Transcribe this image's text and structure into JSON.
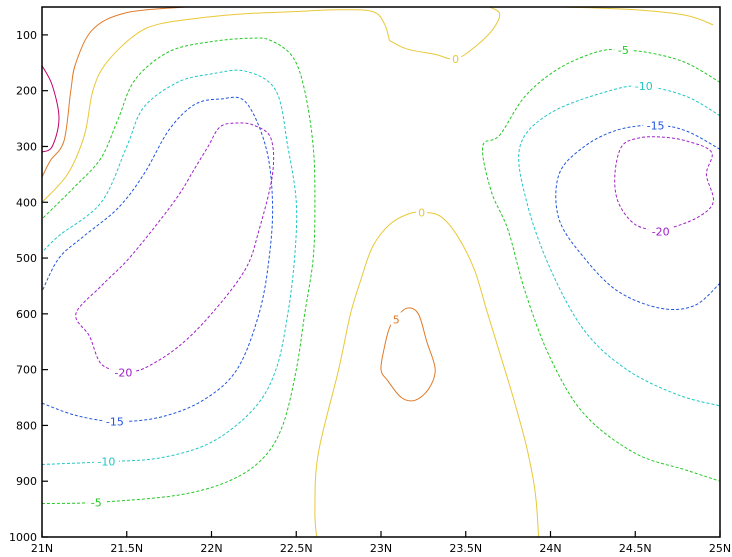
{
  "chart_data": {
    "type": "contour",
    "title": "",
    "xlabel": "",
    "ylabel": "",
    "x_ticks": [
      {
        "value": 21.0,
        "label": "21N"
      },
      {
        "value": 21.5,
        "label": "21.5N"
      },
      {
        "value": 22.0,
        "label": "22N"
      },
      {
        "value": 22.5,
        "label": "22.5N"
      },
      {
        "value": 23.0,
        "label": "23N"
      },
      {
        "value": 23.5,
        "label": "23.5N"
      },
      {
        "value": 24.0,
        "label": "24N"
      },
      {
        "value": 24.5,
        "label": "24.5N"
      },
      {
        "value": 25.0,
        "label": "25N"
      }
    ],
    "y_ticks": [
      {
        "value": 100,
        "label": "100"
      },
      {
        "value": 200,
        "label": "200"
      },
      {
        "value": 300,
        "label": "300"
      },
      {
        "value": 400,
        "label": "400"
      },
      {
        "value": 500,
        "label": "500"
      },
      {
        "value": 600,
        "label": "600"
      },
      {
        "value": 700,
        "label": "700"
      },
      {
        "value": 800,
        "label": "800"
      },
      {
        "value": 900,
        "label": "900"
      },
      {
        "value": 1000,
        "label": "1000"
      }
    ],
    "xlim": [
      21,
      25
    ],
    "ylim": [
      50,
      1000
    ],
    "y_inverted": true,
    "levels": [
      {
        "value": 10,
        "label": "",
        "color": "#c0006a",
        "dashed": false
      },
      {
        "value": 5,
        "label": "5",
        "color": "#e07a28",
        "dashed": false
      },
      {
        "value": 0,
        "label": "0",
        "color": "#e8c838",
        "dashed": false
      },
      {
        "value": -5,
        "label": "-5",
        "color": "#22c922",
        "dashed": true
      },
      {
        "value": -10,
        "label": "-10",
        "color": "#22c6c6",
        "dashed": true
      },
      {
        "value": -15,
        "label": "-15",
        "color": "#2255dd",
        "dashed": true
      },
      {
        "value": -20,
        "label": "-20",
        "color": "#a020c8",
        "dashed": true
      }
    ],
    "contours": [
      {
        "level": 10,
        "points": [
          [
            21.0,
            155
          ],
          [
            21.06,
            190
          ],
          [
            21.1,
            250
          ],
          [
            21.06,
            300
          ],
          [
            21.0,
            310
          ]
        ]
      },
      {
        "level": 5,
        "points": [
          [
            21.0,
            355
          ],
          [
            21.05,
            325
          ],
          [
            21.13,
            290
          ],
          [
            21.17,
            200
          ],
          [
            21.2,
            150
          ],
          [
            21.3,
            90
          ],
          [
            21.5,
            60
          ],
          [
            21.85,
            50
          ]
        ]
      },
      {
        "level": 5,
        "label_at": [
          23.09,
          610
        ],
        "points": [
          [
            23.08,
            610
          ],
          [
            23.15,
            590
          ],
          [
            23.22,
            600
          ],
          [
            23.27,
            650
          ],
          [
            23.32,
            700
          ],
          [
            23.28,
            735
          ],
          [
            23.2,
            755
          ],
          [
            23.12,
            750
          ],
          [
            23.04,
            720
          ],
          [
            23.0,
            700
          ],
          [
            23.02,
            660
          ],
          [
            23.05,
            625
          ],
          [
            23.08,
            610
          ]
        ]
      },
      {
        "level": 0,
        "points": [
          [
            21.0,
            400
          ],
          [
            21.15,
            350
          ],
          [
            21.25,
            280
          ],
          [
            21.3,
            200
          ],
          [
            21.38,
            150
          ],
          [
            21.55,
            100
          ],
          [
            21.7,
            80
          ],
          [
            21.98,
            68
          ],
          [
            22.2,
            62
          ],
          [
            22.5,
            58
          ],
          [
            22.75,
            55
          ],
          [
            22.95,
            58
          ],
          [
            23.02,
            80
          ],
          [
            23.05,
            110
          ]
        ]
      },
      {
        "level": 0,
        "label_at": [
          23.44,
          143
        ],
        "points": [
          [
            23.05,
            110
          ],
          [
            23.15,
            125
          ],
          [
            23.32,
            135
          ],
          [
            23.44,
            143
          ],
          [
            23.56,
            120
          ],
          [
            23.66,
            90
          ],
          [
            23.7,
            62
          ],
          [
            23.64,
            50
          ]
        ]
      },
      {
        "level": 0,
        "points": [
          [
            24.08,
            50
          ],
          [
            24.5,
            55
          ],
          [
            24.8,
            65
          ],
          [
            24.96,
            82
          ]
        ]
      },
      {
        "level": 0,
        "label_at": [
          23.24,
          418
        ],
        "points": [
          [
            22.62,
            1000
          ],
          [
            22.61,
            950
          ],
          [
            22.63,
            850
          ],
          [
            22.75,
            700
          ],
          [
            22.82,
            600
          ],
          [
            22.88,
            540
          ],
          [
            22.95,
            480
          ],
          [
            23.05,
            440
          ],
          [
            23.16,
            421
          ],
          [
            23.24,
            418
          ],
          [
            23.35,
            425
          ],
          [
            23.45,
            460
          ],
          [
            23.55,
            520
          ],
          [
            23.62,
            590
          ],
          [
            23.68,
            650
          ],
          [
            23.78,
            750
          ],
          [
            23.86,
            840
          ],
          [
            23.91,
            920
          ],
          [
            23.93,
            1000
          ]
        ]
      },
      {
        "level": -5,
        "label_at": [
          21.32,
          938
        ],
        "points": [
          [
            21.0,
            940
          ],
          [
            21.32,
            938
          ],
          [
            21.8,
            925
          ],
          [
            22.1,
            900
          ],
          [
            22.3,
            860
          ],
          [
            22.42,
            800
          ],
          [
            22.5,
            700
          ],
          [
            22.55,
            600
          ],
          [
            22.6,
            500
          ],
          [
            22.61,
            400
          ],
          [
            22.6,
            300
          ],
          [
            22.55,
            200
          ],
          [
            22.48,
            140
          ],
          [
            22.35,
            110
          ],
          [
            22.23,
            106
          ],
          [
            22.0,
            112
          ],
          [
            21.75,
            130
          ],
          [
            21.55,
            180
          ],
          [
            21.45,
            250
          ],
          [
            21.35,
            320
          ],
          [
            21.2,
            370
          ],
          [
            21.0,
            430
          ]
        ]
      },
      {
        "level": -5,
        "label_at": [
          24.43,
          127
        ],
        "points": [
          [
            25.0,
            185
          ],
          [
            24.8,
            150
          ],
          [
            24.6,
            133
          ],
          [
            24.43,
            127
          ],
          [
            24.28,
            130
          ],
          [
            24.05,
            160
          ],
          [
            23.85,
            210
          ],
          [
            23.7,
            280
          ],
          [
            23.6,
            300
          ],
          [
            23.65,
            380
          ],
          [
            23.75,
            450
          ],
          [
            23.85,
            560
          ],
          [
            24.0,
            680
          ],
          [
            24.2,
            780
          ],
          [
            24.5,
            850
          ],
          [
            24.8,
            880
          ],
          [
            25.0,
            900
          ]
        ]
      },
      {
        "level": -10,
        "label_at": [
          21.38,
          865
        ],
        "points": [
          [
            21.0,
            870
          ],
          [
            21.38,
            865
          ],
          [
            21.7,
            858
          ],
          [
            22.0,
            830
          ],
          [
            22.25,
            770
          ],
          [
            22.38,
            700
          ],
          [
            22.45,
            600
          ],
          [
            22.49,
            500
          ],
          [
            22.5,
            400
          ],
          [
            22.45,
            300
          ],
          [
            22.38,
            200
          ],
          [
            22.2,
            165
          ],
          [
            22.0,
            170
          ],
          [
            21.8,
            185
          ],
          [
            21.6,
            230
          ],
          [
            21.5,
            300
          ],
          [
            21.35,
            400
          ],
          [
            21.1,
            460
          ],
          [
            21.0,
            490
          ]
        ]
      },
      {
        "level": -10,
        "label_at": [
          24.55,
          192
        ],
        "points": [
          [
            25.0,
            245
          ],
          [
            24.8,
            210
          ],
          [
            24.55,
            192
          ],
          [
            24.35,
            200
          ],
          [
            24.0,
            240
          ],
          [
            23.82,
            300
          ],
          [
            23.86,
            400
          ],
          [
            24.0,
            520
          ],
          [
            24.2,
            630
          ],
          [
            24.45,
            700
          ],
          [
            24.75,
            745
          ],
          [
            25.0,
            765
          ]
        ]
      },
      {
        "level": -15,
        "label_at": [
          21.43,
          793
        ],
        "points": [
          [
            21.0,
            760
          ],
          [
            21.2,
            782
          ],
          [
            21.43,
            793
          ],
          [
            21.7,
            785
          ],
          [
            21.95,
            755
          ],
          [
            22.15,
            700
          ],
          [
            22.28,
            600
          ],
          [
            22.34,
            500
          ],
          [
            22.36,
            400
          ],
          [
            22.32,
            300
          ],
          [
            22.2,
            220
          ],
          [
            22.05,
            215
          ],
          [
            21.9,
            225
          ],
          [
            21.75,
            270
          ],
          [
            21.6,
            350
          ],
          [
            21.45,
            410
          ],
          [
            21.25,
            460
          ],
          [
            21.1,
            500
          ],
          [
            21.0,
            560
          ]
        ]
      },
      {
        "level": -15,
        "label_at": [
          24.62,
          262
        ],
        "points": [
          [
            25.0,
            305
          ],
          [
            24.8,
            272
          ],
          [
            24.62,
            262
          ],
          [
            24.4,
            270
          ],
          [
            24.2,
            300
          ],
          [
            24.05,
            350
          ],
          [
            24.05,
            430
          ],
          [
            24.2,
            500
          ],
          [
            24.4,
            560
          ],
          [
            24.65,
            590
          ],
          [
            24.85,
            585
          ],
          [
            25.0,
            545
          ]
        ]
      },
      {
        "level": -20,
        "label_at": [
          21.48,
          705
        ],
        "points": [
          [
            21.48,
            705
          ],
          [
            21.35,
            690
          ],
          [
            21.28,
            640
          ],
          [
            21.2,
            600
          ],
          [
            21.35,
            550
          ],
          [
            21.5,
            505
          ],
          [
            21.65,
            450
          ],
          [
            21.8,
            390
          ],
          [
            21.9,
            340
          ],
          [
            21.98,
            300
          ],
          [
            22.05,
            265
          ],
          [
            22.15,
            258
          ],
          [
            22.25,
            262
          ],
          [
            22.35,
            285
          ],
          [
            22.36,
            350
          ],
          [
            22.28,
            450
          ],
          [
            22.2,
            520
          ],
          [
            22.0,
            600
          ],
          [
            21.8,
            660
          ],
          [
            21.6,
            698
          ],
          [
            21.48,
            705
          ]
        ]
      },
      {
        "level": -20,
        "label_at": [
          24.65,
          452
        ],
        "points": [
          [
            24.65,
            452
          ],
          [
            24.5,
            440
          ],
          [
            24.4,
            400
          ],
          [
            24.38,
            350
          ],
          [
            24.42,
            300
          ],
          [
            24.52,
            285
          ],
          [
            24.65,
            283
          ],
          [
            24.8,
            290
          ],
          [
            24.95,
            310
          ],
          [
            24.92,
            350
          ],
          [
            24.96,
            400
          ],
          [
            24.85,
            430
          ],
          [
            24.65,
            452
          ]
        ]
      }
    ]
  }
}
